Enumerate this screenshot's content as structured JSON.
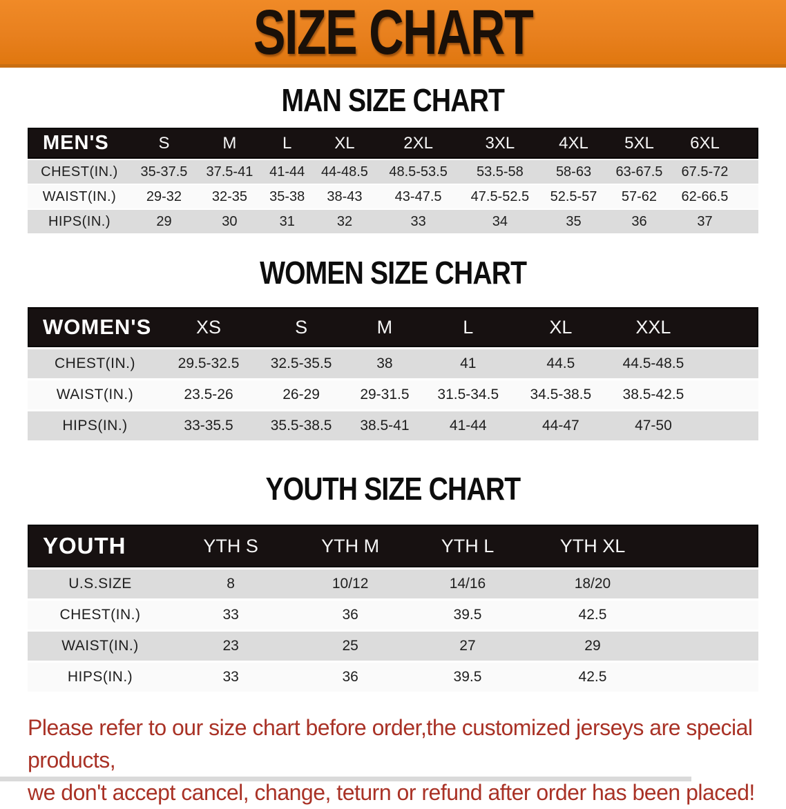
{
  "banner": {
    "title": "SIZE CHART"
  },
  "sections": {
    "men": {
      "title": "MAN SIZE CHART",
      "header_label": "MEN'S",
      "sizes": [
        "S",
        "M",
        "L",
        "XL",
        "2XL",
        "3XL",
        "4XL",
        "5XL",
        "6XL"
      ],
      "rows": [
        {
          "label": "CHEST(IN.)",
          "values": [
            "35-37.5",
            "37.5-41",
            "41-44",
            "44-48.5",
            "48.5-53.5",
            "53.5-58",
            "58-63",
            "63-67.5",
            "67.5-72"
          ]
        },
        {
          "label": "WAIST(IN.)",
          "values": [
            "29-32",
            "32-35",
            "35-38",
            "38-43",
            "43-47.5",
            "47.5-52.5",
            "52.5-57",
            "57-62",
            "62-66.5"
          ]
        },
        {
          "label": "HIPS(IN.)",
          "values": [
            "29",
            "30",
            "31",
            "32",
            "33",
            "34",
            "35",
            "36",
            "37"
          ]
        }
      ]
    },
    "women": {
      "title": "WOMEN SIZE CHART",
      "header_label": "WOMEN'S",
      "sizes": [
        "XS",
        "S",
        "M",
        "L",
        "XL",
        "XXL"
      ],
      "rows": [
        {
          "label": "CHEST(IN.)",
          "values": [
            "29.5-32.5",
            "32.5-35.5",
            "38",
            "41",
            "44.5",
            "44.5-48.5"
          ]
        },
        {
          "label": "WAIST(IN.)",
          "values": [
            "23.5-26",
            "26-29",
            "29-31.5",
            "31.5-34.5",
            "34.5-38.5",
            "38.5-42.5"
          ]
        },
        {
          "label": "HIPS(IN.)",
          "values": [
            "33-35.5",
            "35.5-38.5",
            "38.5-41",
            "41-44",
            "44-47",
            "47-50"
          ]
        }
      ]
    },
    "youth": {
      "title": "YOUTH SIZE CHART",
      "header_label": "YOUTH",
      "sizes": [
        "YTH S",
        "YTH M",
        "YTH L",
        "YTH XL"
      ],
      "rows": [
        {
          "label": "U.S.SIZE",
          "values": [
            "8",
            "10/12",
            "14/16",
            "18/20"
          ]
        },
        {
          "label": "CHEST(IN.)",
          "values": [
            "33",
            "36",
            "39.5",
            "42.5"
          ]
        },
        {
          "label": "WAIST(IN.)",
          "values": [
            "23",
            "25",
            "27",
            "29"
          ]
        },
        {
          "label": "HIPS(IN.)",
          "values": [
            "33",
            "36",
            "39.5",
            "42.5"
          ]
        }
      ]
    }
  },
  "disclaimer": {
    "line1": "Please refer to our size chart before order,the customized jerseys are special products,",
    "line2": "we don't accept cancel, change, teturn or refund after order has been placed!"
  },
  "colors": {
    "banner-orange": "#E8801E",
    "banner-border": "#C96E12",
    "header-black": "#171111",
    "row-gray": "#DCDCDC",
    "row-white": "#FAFAFA",
    "disclaimer-red": "#A93226"
  }
}
